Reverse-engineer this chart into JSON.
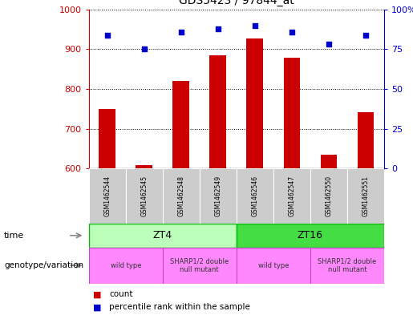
{
  "title": "GDS5423 / 97844_at",
  "samples": [
    "GSM1462544",
    "GSM1462545",
    "GSM1462548",
    "GSM1462549",
    "GSM1462546",
    "GSM1462547",
    "GSM1462550",
    "GSM1462551"
  ],
  "counts": [
    750,
    608,
    820,
    885,
    928,
    878,
    635,
    742
  ],
  "percentiles": [
    84,
    75,
    86,
    88,
    90,
    86,
    78,
    84
  ],
  "ylim_left": [
    600,
    1000
  ],
  "ylim_right": [
    0,
    100
  ],
  "yticks_left": [
    600,
    700,
    800,
    900,
    1000
  ],
  "yticks_right": [
    0,
    25,
    50,
    75,
    100
  ],
  "bar_color": "#cc0000",
  "dot_color": "#0000cc",
  "bar_width": 0.45,
  "zt4_color": "#bbffbb",
  "zt16_color": "#44dd44",
  "geno_color": "#ff88ff",
  "sample_bg": "#cccccc",
  "legend_count_color": "#cc0000",
  "legend_dot_color": "#0000cc"
}
